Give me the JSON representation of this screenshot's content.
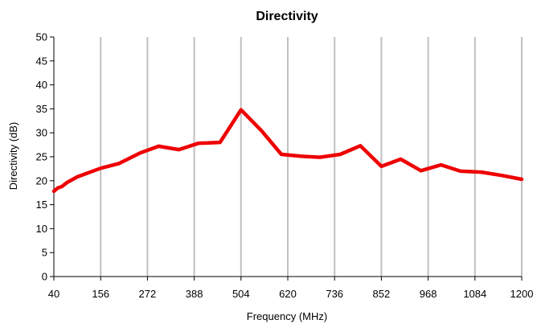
{
  "chart_data": {
    "type": "line",
    "title": "Directivity",
    "xlabel": "Frequency (MHz)",
    "ylabel": "Directivity (dB)",
    "xlim": [
      40,
      1200
    ],
    "ylim": [
      0,
      50
    ],
    "x_ticks": [
      "40",
      "156",
      "272",
      "388",
      "504",
      "620",
      "736",
      "852",
      "968",
      "1084",
      "1200"
    ],
    "y_ticks": [
      "0",
      "5",
      "10",
      "15",
      "20",
      "25",
      "30",
      "35",
      "40",
      "45",
      "50"
    ],
    "grid": "vertical",
    "series": [
      {
        "color": "#ee0000",
        "x": [
          40,
          50,
          60,
          72,
          98,
          156,
          202,
          254,
          300,
          350,
          398,
          452,
          504,
          554,
          604,
          654,
          700,
          750,
          800,
          852,
          900,
          950,
          1000,
          1048,
          1100,
          1150,
          1200
        ],
        "y": [
          17.8,
          18.5,
          18.8,
          19.6,
          20.8,
          22.6,
          23.6,
          25.8,
          27.2,
          26.5,
          27.8,
          28.0,
          34.8,
          30.5,
          25.5,
          25.1,
          24.9,
          25.5,
          27.3,
          23.0,
          24.5,
          22.1,
          23.3,
          22.0,
          21.8,
          21.1,
          20.3
        ]
      }
    ]
  }
}
